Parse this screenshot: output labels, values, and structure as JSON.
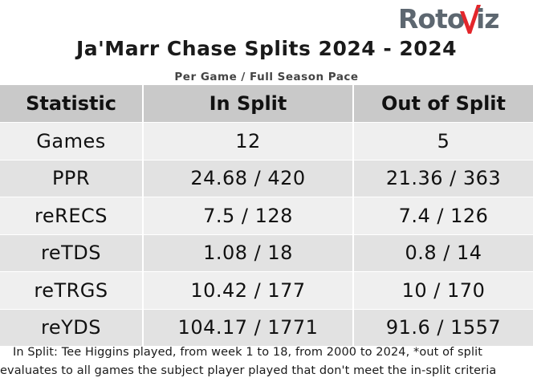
{
  "brand": {
    "logo_text": "RotoViz",
    "logo_prefix": "Roto",
    "logo_v": "V",
    "logo_suffix": "iz",
    "text_color": "#5d6770",
    "accent_color": "#e3262b"
  },
  "header": {
    "title": "Ja'Marr Chase Splits 2024 - 2024",
    "subtitle": "Per Game / Full Season Pace"
  },
  "table": {
    "columns": [
      "Statistic",
      "In Split",
      "Out of Split"
    ],
    "rows": [
      {
        "stat": "Games",
        "in_split": "12",
        "out_split": "5"
      },
      {
        "stat": "PPR",
        "in_split": "24.68 / 420",
        "out_split": "21.36 / 363"
      },
      {
        "stat": "reRECS",
        "in_split": "7.5 / 128",
        "out_split": "7.4 / 126"
      },
      {
        "stat": "reTDS",
        "in_split": "1.08 / 18",
        "out_split": "0.8 / 14"
      },
      {
        "stat": "reTRGS",
        "in_split": "10.42 / 177",
        "out_split": "10 / 170"
      },
      {
        "stat": "reYDS",
        "in_split": "104.17 / 1771",
        "out_split": "91.6 / 1557"
      }
    ],
    "header_bg": "#c9c9c9",
    "row_bg_odd": "#efefef",
    "row_bg_even": "#e2e2e2"
  },
  "footnote": "In Split: Tee Higgins played, from week 1 to 18, from 2000 to 2024,  *out of split evaluates to all games the subject player played that don't meet the in-split criteria"
}
